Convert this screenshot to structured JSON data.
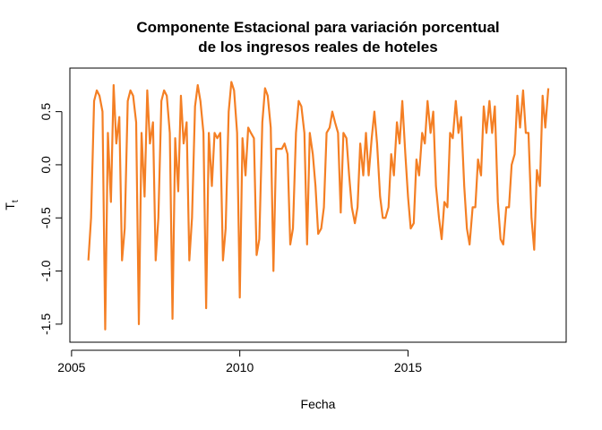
{
  "chart_data": {
    "type": "line",
    "title": [
      "Componente Estacional para variación porcentual",
      "de los ingresos reales de hoteles"
    ],
    "xlabel": "Fecha",
    "ylabel": {
      "main": "T",
      "sub": "t"
    },
    "color": "#f47f24",
    "xlim": [
      2004.95,
      2019.7
    ],
    "ylim": [
      -1.67,
      0.91
    ],
    "xticks": [
      2005,
      2010,
      2015
    ],
    "yticks": [
      {
        "value": -1.5,
        "label": "-1.5"
      },
      {
        "value": -1,
        "label": "-1.0"
      },
      {
        "value": -0.5,
        "label": "-0.5"
      },
      {
        "value": 0,
        "label": "0.0"
      },
      {
        "value": 0.5,
        "label": "0.5"
      }
    ],
    "x": [
      2005.5,
      2005.58,
      2005.67,
      2005.75,
      2005.83,
      2005.92,
      2006,
      2006.08,
      2006.17,
      2006.25,
      2006.33,
      2006.42,
      2006.5,
      2006.58,
      2006.67,
      2006.75,
      2006.83,
      2006.92,
      2007,
      2007.08,
      2007.17,
      2007.25,
      2007.33,
      2007.42,
      2007.5,
      2007.58,
      2007.67,
      2007.75,
      2007.83,
      2007.92,
      2008,
      2008.08,
      2008.17,
      2008.25,
      2008.33,
      2008.42,
      2008.5,
      2008.58,
      2008.67,
      2008.75,
      2008.83,
      2008.92,
      2009,
      2009.08,
      2009.17,
      2009.25,
      2009.33,
      2009.42,
      2009.5,
      2009.58,
      2009.67,
      2009.75,
      2009.83,
      2009.92,
      2010,
      2010.08,
      2010.17,
      2010.25,
      2010.33,
      2010.42,
      2010.5,
      2010.58,
      2010.67,
      2010.75,
      2010.83,
      2010.92,
      2011,
      2011.08,
      2011.17,
      2011.25,
      2011.33,
      2011.42,
      2011.5,
      2011.58,
      2011.67,
      2011.75,
      2011.83,
      2011.92,
      2012,
      2012.08,
      2012.17,
      2012.25,
      2012.33,
      2012.42,
      2012.5,
      2012.58,
      2012.67,
      2012.75,
      2012.83,
      2012.92,
      2013,
      2013.08,
      2013.17,
      2013.25,
      2013.33,
      2013.42,
      2013.5,
      2013.58,
      2013.67,
      2013.75,
      2013.83,
      2013.92,
      2014,
      2014.08,
      2014.17,
      2014.25,
      2014.33,
      2014.42,
      2014.5,
      2014.58,
      2014.67,
      2014.75,
      2014.83,
      2014.92,
      2015,
      2015.08,
      2015.17,
      2015.25,
      2015.33,
      2015.42,
      2015.5,
      2015.58,
      2015.67,
      2015.75,
      2015.83,
      2015.92,
      2016,
      2016.08,
      2016.17,
      2016.25,
      2016.33,
      2016.42,
      2016.5,
      2016.58,
      2016.67,
      2016.75,
      2016.83,
      2016.92,
      2017,
      2017.08,
      2017.17,
      2017.25,
      2017.33,
      2017.42,
      2017.5,
      2017.58,
      2017.67,
      2017.75,
      2017.83,
      2017.92,
      2018,
      2018.08,
      2018.17,
      2018.25,
      2018.33,
      2018.42,
      2018.5,
      2018.58,
      2018.67,
      2018.75,
      2018.83,
      2018.92,
      2019,
      2019.08,
      2019.17
    ],
    "values": [
      -0.9,
      -0.5,
      0.6,
      0.7,
      0.65,
      0.5,
      -1.55,
      0.3,
      -0.35,
      0.75,
      0.2,
      0.45,
      -0.9,
      -0.6,
      0.6,
      0.7,
      0.65,
      0.4,
      -1.5,
      0.3,
      -0.3,
      0.7,
      0.2,
      0.4,
      -0.9,
      -0.5,
      0.6,
      0.7,
      0.65,
      0.3,
      -1.45,
      0.25,
      -0.25,
      0.65,
      0.2,
      0.4,
      -0.9,
      -0.5,
      0.55,
      0.75,
      0.6,
      0.3,
      -1.35,
      0.3,
      -0.2,
      0.3,
      0.25,
      0.3,
      -0.9,
      -0.6,
      0.5,
      0.78,
      0.7,
      0.3,
      -1.25,
      0.25,
      -0.1,
      0.35,
      0.3,
      0.25,
      -0.85,
      -0.7,
      0.4,
      0.72,
      0.65,
      0.35,
      -1.0,
      0.15,
      0.15,
      0.15,
      0.2,
      0.1,
      -0.75,
      -0.6,
      0.3,
      0.6,
      0.55,
      0.3,
      -0.75,
      0.3,
      0.1,
      -0.2,
      -0.65,
      -0.6,
      -0.4,
      0.3,
      0.35,
      0.5,
      0.4,
      0.3,
      -0.45,
      0.3,
      0.25,
      -0.1,
      -0.4,
      -0.55,
      -0.4,
      0.2,
      -0.1,
      0.3,
      -0.1,
      0.25,
      0.5,
      0.2,
      -0.3,
      -0.5,
      -0.5,
      -0.4,
      0.1,
      -0.1,
      0.4,
      0.2,
      0.6,
      0.1,
      -0.3,
      -0.6,
      -0.55,
      0.05,
      -0.1,
      0.3,
      0.2,
      0.6,
      0.3,
      0.5,
      -0.2,
      -0.5,
      -0.7,
      -0.35,
      -0.4,
      0.3,
      0.25,
      0.6,
      0.3,
      0.45,
      -0.2,
      -0.6,
      -0.75,
      -0.4,
      -0.4,
      0.05,
      -0.1,
      0.55,
      0.3,
      0.6,
      0.3,
      0.55,
      -0.35,
      -0.7,
      -0.75,
      -0.4,
      -0.4,
      0.0,
      0.1,
      0.65,
      0.35,
      0.7,
      0.3,
      0.3,
      -0.5,
      -0.8,
      -0.05,
      -0.2,
      0.65,
      0.35,
      0.72
    ]
  }
}
